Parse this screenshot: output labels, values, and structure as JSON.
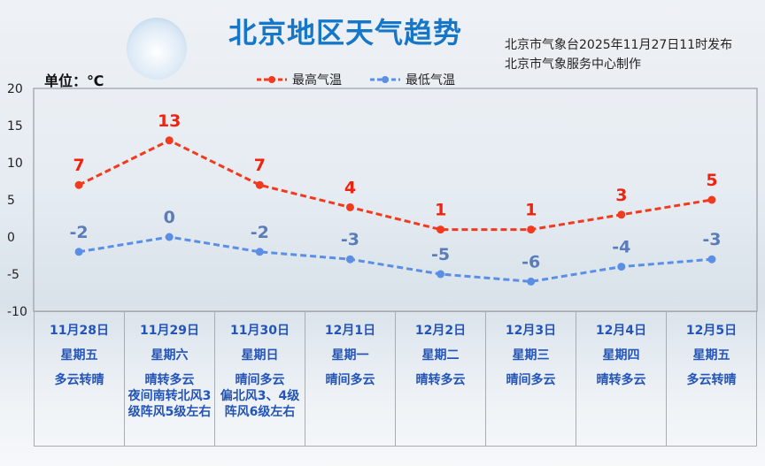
{
  "header": {
    "title": "北京地区天气趋势",
    "publish_line1": "北京市气象台2025年11月27日11时发布",
    "publish_line2": "北京市气象服务中心制作",
    "unit_label": "单位：℃"
  },
  "chart_data": {
    "type": "line",
    "ylim": [
      -10,
      20
    ],
    "yticks": [
      "20",
      "15",
      "10",
      "5",
      "0",
      "-5",
      "-10"
    ],
    "legend_position": "top-center",
    "grid": false,
    "categories": [
      "11月28日",
      "11月29日",
      "11月30日",
      "12月1日",
      "12月2日",
      "12月3日",
      "12月4日",
      "12月5日"
    ],
    "series": [
      {
        "name": "最高气温",
        "color": "#f23a1e",
        "values": [
          7,
          13,
          7,
          4,
          1,
          1,
          3,
          5
        ]
      },
      {
        "name": "最低气温",
        "color": "#5b8fe6",
        "values": [
          -2,
          0,
          -2,
          -3,
          -5,
          -6,
          -4,
          -3
        ]
      }
    ]
  },
  "days": [
    {
      "date": "11月28日",
      "weekday": "星期五",
      "weather": "多云转晴"
    },
    {
      "date": "11月29日",
      "weekday": "星期六",
      "weather": "晴转多云\n夜间南转北风3级阵风5级左右"
    },
    {
      "date": "11月30日",
      "weekday": "星期日",
      "weather": "晴间多云\n偏北风3、4级阵风6级左右"
    },
    {
      "date": "12月1日",
      "weekday": "星期一",
      "weather": "晴间多云"
    },
    {
      "date": "12月2日",
      "weekday": "星期二",
      "weather": "晴转多云"
    },
    {
      "date": "12月3日",
      "weekday": "星期三",
      "weather": "晴间多云"
    },
    {
      "date": "12月4日",
      "weekday": "星期四",
      "weather": "晴转多云"
    },
    {
      "date": "12月5日",
      "weekday": "星期五",
      "weather": "多云转晴"
    }
  ]
}
